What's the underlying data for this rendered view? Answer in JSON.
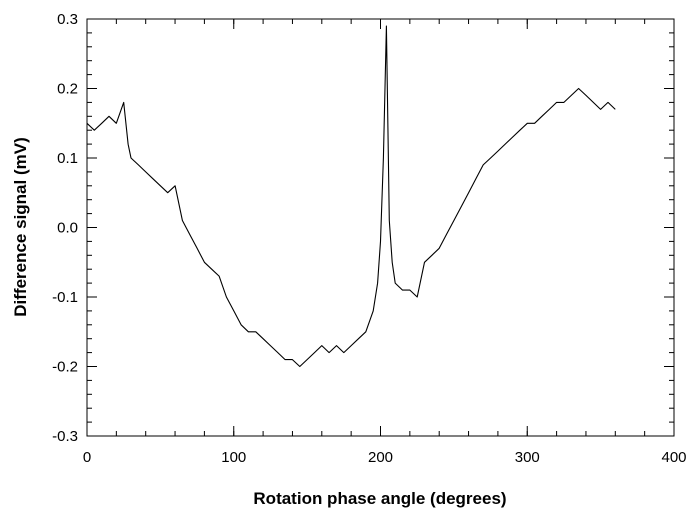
{
  "chart_data": {
    "type": "line",
    "title": "",
    "xlabel": "Rotation phase angle (degrees)",
    "ylabel": "Difference signal (mV)",
    "xlim": [
      0,
      400
    ],
    "ylim": [
      -0.3,
      0.3
    ],
    "xticks": [
      0,
      100,
      200,
      300,
      400
    ],
    "xtick_labels": [
      "0",
      "100",
      "200",
      "300",
      "400"
    ],
    "yticks": [
      -0.3,
      -0.2,
      -0.1,
      0.0,
      0.1,
      0.2,
      0.3
    ],
    "ytick_labels": [
      "-0.3",
      "-0.2",
      "-0.1",
      "0.0",
      "0.1",
      "0.2",
      "0.3"
    ],
    "x_minor_step": 20,
    "y_minor_step": 0.02,
    "grid": false,
    "line_color": "#000000",
    "series": [
      {
        "x": [
          0,
          5,
          10,
          15,
          20,
          25,
          28,
          30,
          35,
          40,
          45,
          50,
          55,
          60,
          65,
          70,
          75,
          80,
          85,
          90,
          95,
          100,
          105,
          110,
          115,
          120,
          125,
          130,
          135,
          140,
          145,
          150,
          155,
          160,
          165,
          170,
          175,
          180,
          185,
          190,
          195,
          198,
          200,
          202,
          204,
          206,
          208,
          210,
          215,
          220,
          225,
          230,
          235,
          240,
          245,
          250,
          255,
          260,
          265,
          270,
          275,
          280,
          285,
          290,
          295,
          300,
          305,
          310,
          315,
          320,
          325,
          330,
          335,
          340,
          345,
          350,
          355,
          360
        ],
        "y": [
          0.15,
          0.14,
          0.15,
          0.16,
          0.15,
          0.18,
          0.12,
          0.1,
          0.09,
          0.08,
          0.07,
          0.06,
          0.05,
          0.06,
          0.01,
          -0.01,
          -0.03,
          -0.05,
          -0.06,
          -0.07,
          -0.1,
          -0.12,
          -0.14,
          -0.15,
          -0.15,
          -0.16,
          -0.17,
          -0.18,
          -0.19,
          -0.19,
          -0.2,
          -0.19,
          -0.18,
          -0.17,
          -0.18,
          -0.17,
          -0.18,
          -0.17,
          -0.16,
          -0.15,
          -0.12,
          -0.08,
          -0.02,
          0.1,
          0.29,
          0.01,
          -0.05,
          -0.08,
          -0.09,
          -0.09,
          -0.1,
          -0.05,
          -0.04,
          -0.03,
          -0.01,
          0.01,
          0.03,
          0.05,
          0.07,
          0.09,
          0.1,
          0.11,
          0.12,
          0.13,
          0.14,
          0.15,
          0.15,
          0.16,
          0.17,
          0.18,
          0.18,
          0.19,
          0.2,
          0.19,
          0.18,
          0.17,
          0.18,
          0.17
        ]
      }
    ]
  }
}
